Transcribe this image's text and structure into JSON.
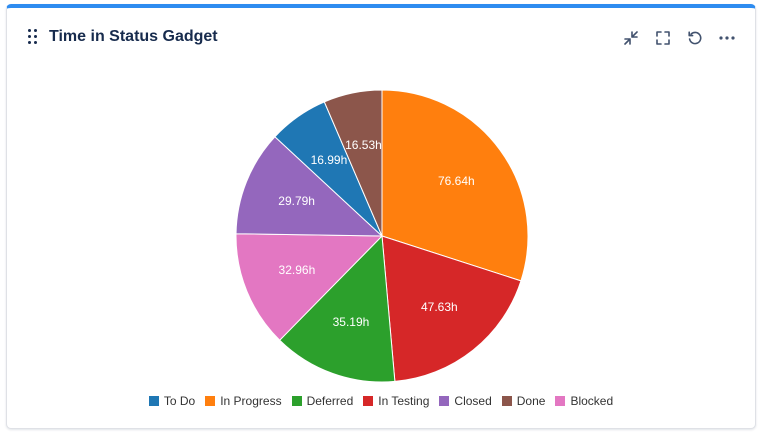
{
  "gadget": {
    "title": "Time in Status Gadget",
    "accent_color": "#2e8cf0",
    "actions": [
      {
        "name": "minimize-icon",
        "label": "Minimize"
      },
      {
        "name": "fullscreen-icon",
        "label": "Full screen"
      },
      {
        "name": "refresh-icon",
        "label": "Refresh"
      },
      {
        "name": "more-icon",
        "label": "More actions"
      }
    ]
  },
  "chart_data": {
    "type": "pie",
    "title": "",
    "unit": "h",
    "start_angle_deg": 0,
    "direction": "clockwise",
    "slices": [
      {
        "label": "In Progress",
        "value": 76.64,
        "display": "76.64h",
        "color": "#ff7f0e"
      },
      {
        "label": "In Testing",
        "value": 47.63,
        "display": "47.63h",
        "color": "#d62728"
      },
      {
        "label": "Deferred",
        "value": 35.19,
        "display": "35.19h",
        "color": "#2ca02c"
      },
      {
        "label": "Blocked",
        "value": 32.96,
        "display": "32.96h",
        "color": "#e377c2"
      },
      {
        "label": "Closed",
        "value": 29.79,
        "display": "29.79h",
        "color": "#9467bd"
      },
      {
        "label": "To Do",
        "value": 16.99,
        "display": "16.99h",
        "color": "#1f77b4"
      },
      {
        "label": "Done",
        "value": 16.53,
        "display": "16.53h",
        "color": "#8c564b"
      }
    ],
    "legend": {
      "placement": "bottom-center",
      "entries": [
        {
          "label": "To Do",
          "color": "#1f77b4"
        },
        {
          "label": "In Progress",
          "color": "#ff7f0e"
        },
        {
          "label": "Deferred",
          "color": "#2ca02c"
        },
        {
          "label": "In Testing",
          "color": "#d62728"
        },
        {
          "label": "Closed",
          "color": "#9467bd"
        },
        {
          "label": "Done",
          "color": "#8c564b"
        },
        {
          "label": "Blocked",
          "color": "#e377c2"
        }
      ]
    }
  }
}
